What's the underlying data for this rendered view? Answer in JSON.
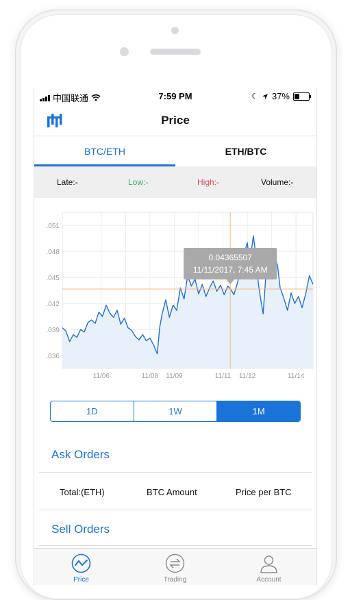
{
  "status_bar": {
    "carrier": "中国联通",
    "time": "7:59 PM",
    "battery": "37%"
  },
  "nav": {
    "title": "Price",
    "logo_icon": "exchange-logo-icon"
  },
  "pair_tabs": [
    {
      "label": "BTC/ETH",
      "active": true
    },
    {
      "label": "ETH/BTC",
      "active": false
    }
  ],
  "stats": {
    "late": "Late:-",
    "low": "Low:-",
    "high": "High:-",
    "volume": "Volume:-"
  },
  "chart_data": {
    "type": "line",
    "y_ticks": [
      ".036",
      ".039",
      ".042",
      ".045",
      ".048",
      ".051"
    ],
    "x_ticks": [
      "11/06",
      "11/08",
      "11/09",
      "11/11",
      "11/12",
      "11/14"
    ],
    "ylim": [
      0.0345,
      0.0525
    ],
    "tooltip": {
      "value": "0.04365507",
      "date": "11/11/2017, 7:45 AM"
    },
    "crosshair": {
      "x_day": 11.3,
      "y": 0.04365507
    },
    "x_range_days": [
      4.4,
      14.7
    ],
    "points": [
      [
        4.4,
        0.0392
      ],
      [
        4.55,
        0.0388
      ],
      [
        4.7,
        0.0376
      ],
      [
        4.85,
        0.0384
      ],
      [
        5.0,
        0.0381
      ],
      [
        5.15,
        0.039
      ],
      [
        5.3,
        0.0387
      ],
      [
        5.45,
        0.0398
      ],
      [
        5.6,
        0.0401
      ],
      [
        5.75,
        0.0397
      ],
      [
        5.9,
        0.041
      ],
      [
        6.05,
        0.0405
      ],
      [
        6.2,
        0.0418
      ],
      [
        6.35,
        0.0409
      ],
      [
        6.5,
        0.0404
      ],
      [
        6.65,
        0.0412
      ],
      [
        6.8,
        0.0396
      ],
      [
        6.95,
        0.0403
      ],
      [
        7.1,
        0.0392
      ],
      [
        7.25,
        0.0389
      ],
      [
        7.4,
        0.0382
      ],
      [
        7.55,
        0.0378
      ],
      [
        7.7,
        0.0384
      ],
      [
        7.85,
        0.0377
      ],
      [
        8.0,
        0.038
      ],
      [
        8.15,
        0.0372
      ],
      [
        8.3,
        0.0362
      ],
      [
        8.4,
        0.0392
      ],
      [
        8.5,
        0.0408
      ],
      [
        8.65,
        0.0424
      ],
      [
        8.8,
        0.0404
      ],
      [
        8.95,
        0.0418
      ],
      [
        9.1,
        0.0412
      ],
      [
        9.25,
        0.0438
      ],
      [
        9.4,
        0.0425
      ],
      [
        9.55,
        0.0452
      ],
      [
        9.7,
        0.044
      ],
      [
        9.85,
        0.0448
      ],
      [
        10.0,
        0.0431
      ],
      [
        10.15,
        0.0442
      ],
      [
        10.3,
        0.0428
      ],
      [
        10.45,
        0.0438
      ],
      [
        10.6,
        0.0446
      ],
      [
        10.75,
        0.0434
      ],
      [
        10.9,
        0.0441
      ],
      [
        11.05,
        0.043
      ],
      [
        11.2,
        0.044
      ],
      [
        11.3,
        0.0437
      ],
      [
        11.45,
        0.043
      ],
      [
        11.6,
        0.0444
      ],
      [
        11.75,
        0.0462
      ],
      [
        11.9,
        0.048
      ],
      [
        12.0,
        0.049
      ],
      [
        12.1,
        0.0466
      ],
      [
        12.25,
        0.0498
      ],
      [
        12.35,
        0.0476
      ],
      [
        12.45,
        0.0444
      ],
      [
        12.55,
        0.0425
      ],
      [
        12.65,
        0.0408
      ],
      [
        12.75,
        0.0447
      ],
      [
        12.85,
        0.0462
      ],
      [
        12.95,
        0.0473
      ],
      [
        13.05,
        0.0455
      ],
      [
        13.15,
        0.0474
      ],
      [
        13.25,
        0.0462
      ],
      [
        13.35,
        0.0438
      ],
      [
        13.5,
        0.0426
      ],
      [
        13.65,
        0.0412
      ],
      [
        13.8,
        0.0432
      ],
      [
        13.95,
        0.042
      ],
      [
        14.1,
        0.0428
      ],
      [
        14.25,
        0.0415
      ],
      [
        14.4,
        0.0431
      ],
      [
        14.55,
        0.0452
      ],
      [
        14.7,
        0.0442
      ]
    ]
  },
  "range_segments": [
    {
      "label": "1D"
    },
    {
      "label": "1W"
    },
    {
      "label": "1M",
      "active": true
    }
  ],
  "ask_orders": {
    "title": "Ask Orders"
  },
  "order_columns": {
    "total": "Total:(ETH)",
    "amount": "BTC Amount",
    "price": "Price per BTC"
  },
  "sell_orders": {
    "title": "Sell Orders"
  },
  "tabbar": [
    {
      "label": "Price",
      "icon": "price-chart-icon",
      "active": true
    },
    {
      "label": "Trading",
      "icon": "exchange-arrows-icon",
      "active": false
    },
    {
      "label": "Account",
      "icon": "person-icon",
      "active": false
    }
  ],
  "colors": {
    "accent": "#1a73d9",
    "low": "#35a966",
    "high": "#e04a60",
    "line": "#1f6fd8",
    "crosshair": "#f5b878"
  }
}
